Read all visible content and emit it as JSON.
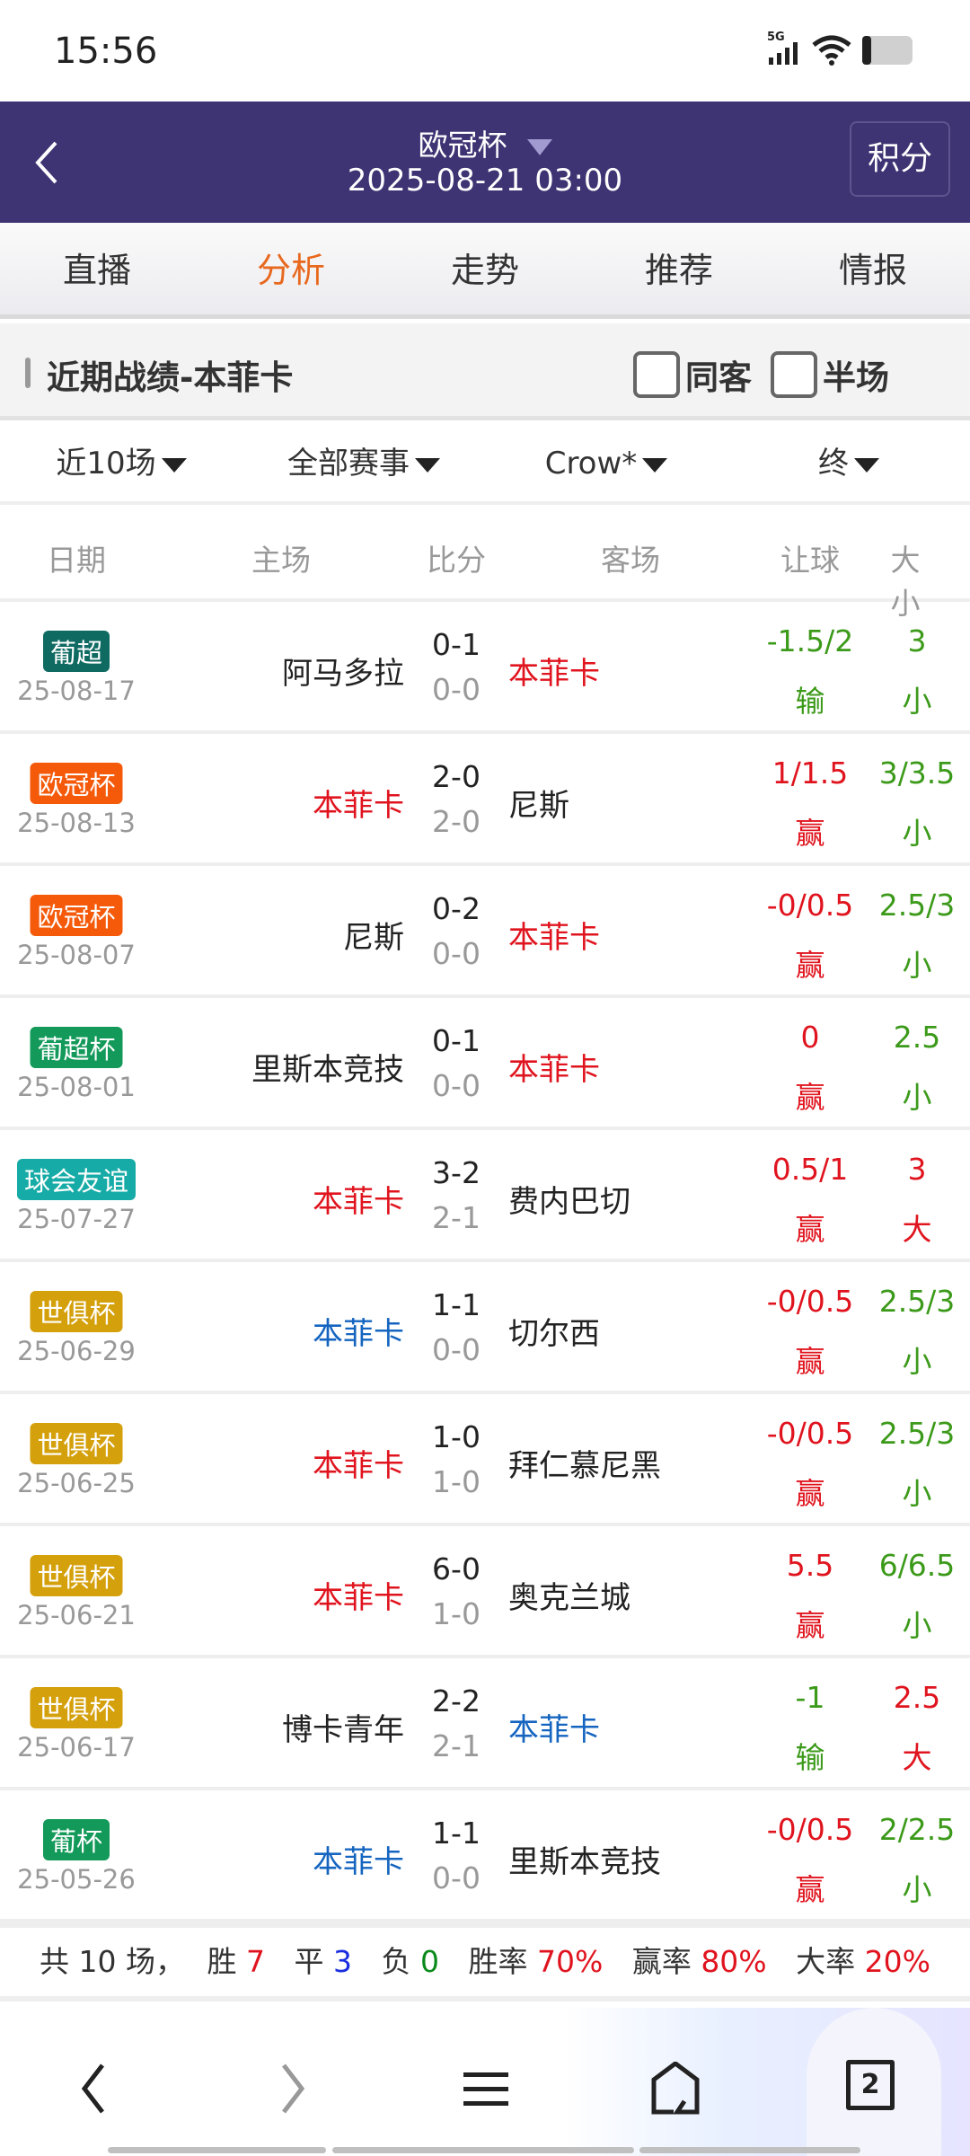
{
  "status": {
    "time": "15:56",
    "network": "5G",
    "icons": [
      "signal-icon",
      "wifi-icon",
      "battery-icon"
    ]
  },
  "nav": {
    "title": "欧冠杯",
    "datetime": "2025-08-21 03:00",
    "standings_label": "积分"
  },
  "tabs": [
    {
      "label": "直播",
      "active": false
    },
    {
      "label": "分析",
      "active": true
    },
    {
      "label": "走势",
      "active": false
    },
    {
      "label": "推荐",
      "active": false
    },
    {
      "label": "情报",
      "active": false
    }
  ],
  "section": {
    "title": "近期战绩-本菲卡",
    "same_away_label": "同客",
    "half_label": "半场",
    "same_away_checked": false,
    "half_checked": false
  },
  "filters": [
    "近10场",
    "全部赛事",
    "Crow*",
    "终"
  ],
  "columns": {
    "date": "日期",
    "home": "主场",
    "score": "比分",
    "away": "客场",
    "handicap": "让球",
    "ou": "大小"
  },
  "colors": {
    "red": "#e0141e",
    "blue": "#1565c0",
    "black": "#222222",
    "green": "#3c9a1a",
    "nav_bg": "#3e3373",
    "accent": "#e8681e"
  },
  "matches": [
    {
      "league": "葡超",
      "league_color": "#0f6a62",
      "date": "25-08-17",
      "home": "阿马多拉",
      "home_color": "black",
      "score": "0-1",
      "half": "0-0",
      "away": "本菲卡",
      "away_color": "red",
      "hcap": "-1.5/2",
      "hcap_result": "输",
      "hcap_color": "green",
      "ou": "3",
      "ou_result": "小",
      "ou_color": "green"
    },
    {
      "league": "欧冠杯",
      "league_color": "#f55a0a",
      "date": "25-08-13",
      "home": "本菲卡",
      "home_color": "red",
      "score": "2-0",
      "half": "2-0",
      "away": "尼斯",
      "away_color": "black",
      "hcap": "1/1.5",
      "hcap_result": "赢",
      "hcap_color": "red",
      "ou": "3/3.5",
      "ou_result": "小",
      "ou_color": "green"
    },
    {
      "league": "欧冠杯",
      "league_color": "#f55a0a",
      "date": "25-08-07",
      "home": "尼斯",
      "home_color": "black",
      "score": "0-2",
      "half": "0-0",
      "away": "本菲卡",
      "away_color": "red",
      "hcap": "-0/0.5",
      "hcap_result": "赢",
      "hcap_color": "red",
      "ou": "2.5/3",
      "ou_result": "小",
      "ou_color": "green"
    },
    {
      "league": "葡超杯",
      "league_color": "#139a5a",
      "date": "25-08-01",
      "home": "里斯本竞技",
      "home_color": "black",
      "score": "0-1",
      "half": "0-0",
      "away": "本菲卡",
      "away_color": "red",
      "hcap": "0",
      "hcap_result": "赢",
      "hcap_color": "red",
      "ou": "2.5",
      "ou_result": "小",
      "ou_color": "green"
    },
    {
      "league": "球会友谊",
      "league_color": "#16aba6",
      "date": "25-07-27",
      "home": "本菲卡",
      "home_color": "red",
      "score": "3-2",
      "half": "2-1",
      "away": "费内巴切",
      "away_color": "black",
      "hcap": "0.5/1",
      "hcap_result": "赢",
      "hcap_color": "red",
      "ou": "3",
      "ou_result": "大",
      "ou_color": "red"
    },
    {
      "league": "世俱杯",
      "league_color": "#d4a00c",
      "date": "25-06-29",
      "home": "本菲卡",
      "home_color": "blue",
      "score": "1-1",
      "half": "0-0",
      "away": "切尔西",
      "away_color": "black",
      "hcap": "-0/0.5",
      "hcap_result": "赢",
      "hcap_color": "red",
      "ou": "2.5/3",
      "ou_result": "小",
      "ou_color": "green"
    },
    {
      "league": "世俱杯",
      "league_color": "#d4a00c",
      "date": "25-06-25",
      "home": "本菲卡",
      "home_color": "red",
      "score": "1-0",
      "half": "1-0",
      "away": "拜仁慕尼黑",
      "away_color": "black",
      "hcap": "-0/0.5",
      "hcap_result": "赢",
      "hcap_color": "red",
      "ou": "2.5/3",
      "ou_result": "小",
      "ou_color": "green"
    },
    {
      "league": "世俱杯",
      "league_color": "#d4a00c",
      "date": "25-06-21",
      "home": "本菲卡",
      "home_color": "red",
      "score": "6-0",
      "half": "1-0",
      "away": "奥克兰城",
      "away_color": "black",
      "hcap": "5.5",
      "hcap_result": "赢",
      "hcap_color": "red",
      "ou": "6/6.5",
      "ou_result": "小",
      "ou_color": "green"
    },
    {
      "league": "世俱杯",
      "league_color": "#d4a00c",
      "date": "25-06-17",
      "home": "博卡青年",
      "home_color": "black",
      "score": "2-2",
      "half": "2-1",
      "away": "本菲卡",
      "away_color": "blue",
      "hcap": "-1",
      "hcap_result": "输",
      "hcap_color": "green",
      "ou": "2.5",
      "ou_result": "大",
      "ou_color": "red"
    },
    {
      "league": "葡杯",
      "league_color": "#139a5a",
      "date": "25-05-26",
      "home": "本菲卡",
      "home_color": "blue",
      "score": "1-1",
      "half": "0-0",
      "away": "里斯本竞技",
      "away_color": "black",
      "hcap": "-0/0.5",
      "hcap_result": "赢",
      "hcap_color": "red",
      "ou": "2/2.5",
      "ou_result": "小",
      "ou_color": "green"
    }
  ],
  "summary": {
    "total_label": "共 10 场，",
    "win_label": "胜",
    "win": "7",
    "draw_label": "平",
    "draw": "3",
    "loss_label": "负",
    "loss": "0",
    "win_rate_label": "胜率",
    "win_rate": "70%",
    "hcap_rate_label": "赢率",
    "hcap_rate": "80%",
    "over_rate_label": "大率",
    "over_rate": "20%"
  },
  "bottom_nav": {
    "tab_count": "2"
  }
}
